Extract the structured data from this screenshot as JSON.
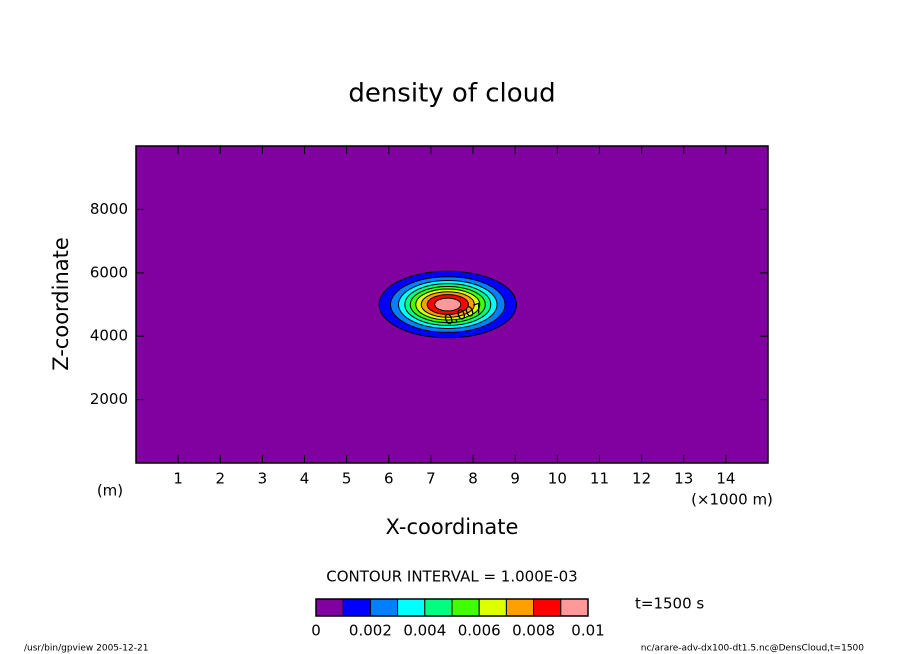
{
  "chart_data": {
    "type": "contour",
    "title": "density of cloud",
    "xlabel": "X-coordinate",
    "ylabel": "Z-coordinate",
    "xunit": "(×1000 m)",
    "yunit": "(m)",
    "xlim": [
      0,
      15
    ],
    "xticks": [
      1,
      2,
      3,
      4,
      5,
      6,
      7,
      8,
      9,
      10,
      11,
      12,
      13,
      14
    ],
    "ylim": [
      0,
      10000
    ],
    "yticks": [
      2000,
      4000,
      6000,
      8000
    ],
    "background_color": "#8000a0",
    "contours": [
      {
        "level": 0.001,
        "cx": 7.4,
        "cz": 5000,
        "rx": 1.63,
        "rz": 1050
      },
      {
        "level": 0.002,
        "cx": 7.4,
        "cz": 5000,
        "rx": 1.36,
        "rz": 877
      },
      {
        "level": 0.003,
        "cx": 7.4,
        "cz": 5000,
        "rx": 1.17,
        "rz": 757
      },
      {
        "level": 0.004,
        "cx": 7.4,
        "cz": 5000,
        "rx": 1.02,
        "rz": 659
      },
      {
        "level": 0.005,
        "cx": 7.4,
        "cz": 5000,
        "rx": 0.89,
        "rz": 571
      },
      {
        "level": 0.006,
        "cx": 7.4,
        "cz": 5000,
        "rx": 0.76,
        "rz": 487
      },
      {
        "level": 0.007,
        "cx": 7.4,
        "cz": 5000,
        "rx": 0.63,
        "rz": 403
      },
      {
        "level": 0.008,
        "cx": 7.4,
        "cz": 5000,
        "rx": 0.49,
        "rz": 313
      },
      {
        "level": 0.009,
        "cx": 7.4,
        "cz": 5000,
        "rx": 0.31,
        "rz": 203
      }
    ],
    "contour_label": "0.007",
    "contour_interval_text": "CONTOUR INTERVAL = 1.000E-03",
    "colorbar": {
      "lim": [
        0,
        0.01
      ],
      "ticks": [
        0,
        0.002,
        0.004,
        0.006,
        0.008,
        0.01
      ],
      "colors": [
        "#8000a0",
        "#0000ff",
        "#0080ff",
        "#00ffff",
        "#00ff80",
        "#40ff00",
        "#ddff00",
        "#ffa000",
        "#ff0000",
        "#ff9999"
      ]
    },
    "time_text": "t=1500 s",
    "footer_left": "/usr/bin/gpview  2005-12-21",
    "footer_right": "nc/arare-adv-dx100-dt1.5.nc@DensCloud,t=1500"
  }
}
